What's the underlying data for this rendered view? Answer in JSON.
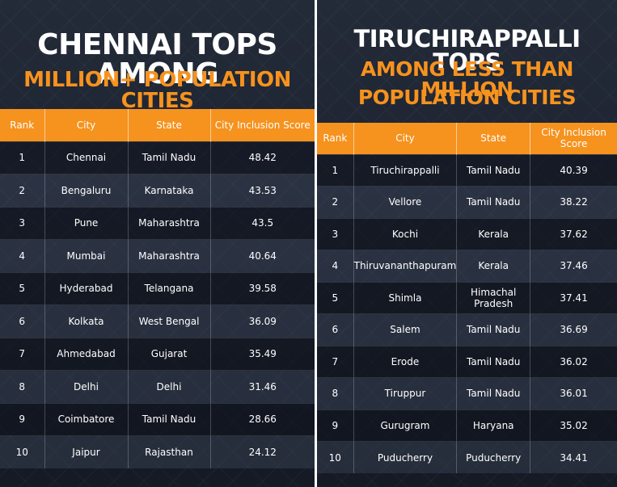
{
  "left": {
    "title_line1": "CHENNAI TOPS AMONG",
    "title_line2": "MILLION+ POPULATION CITIES",
    "headers": [
      "Rank",
      "City",
      "State",
      "City Inclusion Score"
    ],
    "rows": [
      [
        "1",
        "Chennai",
        "Tamil Nadu",
        "48.42"
      ],
      [
        "2",
        "Bengaluru",
        "Karnataka",
        "43.53"
      ],
      [
        "3",
        "Pune",
        "Maharashtra",
        "43.5"
      ],
      [
        "4",
        "Mumbai",
        "Maharashtra",
        "40.64"
      ],
      [
        "5",
        "Hyderabad",
        "Telangana",
        "39.58"
      ],
      [
        "6",
        "Kolkata",
        "West Bengal",
        "36.09"
      ],
      [
        "7",
        "Ahmedabad",
        "Gujarat",
        "35.49"
      ],
      [
        "8",
        "Delhi",
        "Delhi",
        "31.46"
      ],
      [
        "9",
        "Coimbatore",
        "Tamil Nadu",
        "28.66"
      ],
      [
        "10",
        "Jaipur",
        "Rajasthan",
        "24.12"
      ]
    ]
  },
  "right": {
    "title_line1": "TIRUCHIRAPPALLI TOPS",
    "title_line2": "AMONG LESS THAN MILLION",
    "title_line3": "POPULATION CITIES",
    "headers": [
      "Rank",
      "City",
      "State",
      "City Inclusion Score"
    ],
    "rows": [
      [
        "1",
        "Tiruchirappalli",
        "Tamil Nadu",
        "40.39"
      ],
      [
        "2",
        "Vellore",
        "Tamil Nadu",
        "38.22"
      ],
      [
        "3",
        "Kochi",
        "Kerala",
        "37.62"
      ],
      [
        "4",
        "Thiruvananthapuram",
        "Kerala",
        "37.46"
      ],
      [
        "5",
        "Shimla",
        "Himachal Pradesh",
        "37.41"
      ],
      [
        "6",
        "Salem",
        "Tamil Nadu",
        "36.69"
      ],
      [
        "7",
        "Erode",
        "Tamil Nadu",
        "36.02"
      ],
      [
        "8",
        "Tiruppur",
        "Tamil Nadu",
        "36.01"
      ],
      [
        "9",
        "Gurugram",
        "Haryana",
        "35.02"
      ],
      [
        "10",
        "Puducherry",
        "Puducherry",
        "34.41"
      ]
    ]
  },
  "colors": {
    "accent": "#f6921e",
    "background": "#1c2230"
  }
}
